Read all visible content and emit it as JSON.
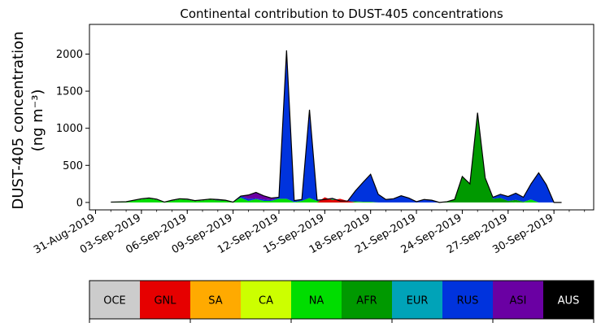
{
  "chart_data": {
    "type": "area",
    "title": "Continental contribution to DUST-405 concentrations",
    "ylabel_line1": "DUST-405 concentration",
    "ylabel_line2": "(ng m⁻³)",
    "xlabel": "",
    "ylim": [
      -100,
      2400
    ],
    "yticks": [
      0,
      500,
      1000,
      1500,
      2000
    ],
    "x_start": "2019-08-31",
    "xlim_days": [
      -0.4,
      32.6
    ],
    "xtick_labels": [
      "31-Aug-2019",
      "03-Sep-2019",
      "06-Sep-2019",
      "09-Sep-2019",
      "12-Sep-2019",
      "15-Sep-2019",
      "18-Sep-2019",
      "21-Sep-2019",
      "24-Sep-2019",
      "27-Sep-2019",
      "30-Sep-2019"
    ],
    "xtick_days": [
      0,
      3,
      6,
      9,
      12,
      15,
      18,
      21,
      24,
      27,
      30
    ],
    "x_days": [
      1,
      2,
      3,
      3.5,
      4,
      4.5,
      5,
      5.5,
      6,
      6.5,
      7,
      7.5,
      8,
      8.5,
      9,
      9.5,
      10,
      10.5,
      11,
      11.5,
      12,
      12.5,
      13,
      13.5,
      14,
      14.5,
      15,
      15.5,
      16,
      16.5,
      17,
      17.5,
      18,
      18.5,
      19,
      19.5,
      20,
      20.5,
      21,
      21.5,
      22,
      22.5,
      23,
      23.5,
      24,
      24.5,
      25,
      25.5,
      26,
      26.5,
      27,
      27.5,
      28,
      28.5,
      29,
      29.5,
      30,
      30.5
    ],
    "series": [
      {
        "name": "GNL",
        "color": "#e60000",
        "values": [
          0,
          0,
          0,
          0,
          0,
          0,
          0,
          0,
          0,
          0,
          0,
          0,
          0,
          0,
          0,
          0,
          0,
          0,
          0,
          0,
          0,
          0,
          0,
          0,
          0,
          0,
          0,
          0,
          0,
          0,
          0,
          0,
          0,
          0,
          0,
          0,
          0,
          0,
          0,
          0,
          0,
          0,
          0,
          0,
          0,
          0,
          0,
          0,
          0,
          0,
          0,
          0,
          0,
          0,
          0,
          0,
          0,
          0
        ]
      },
      {
        "name": "SA",
        "color": "#ffaa00",
        "values": [
          0,
          0,
          0,
          0,
          0,
          0,
          0,
          0,
          0,
          0,
          0,
          0,
          0,
          0,
          0,
          0,
          0,
          0,
          0,
          0,
          0,
          0,
          0,
          0,
          0,
          0,
          0,
          0,
          0,
          0,
          0,
          0,
          0,
          0,
          0,
          0,
          0,
          0,
          0,
          0,
          0,
          0,
          0,
          0,
          0,
          0,
          0,
          0,
          0,
          0,
          0,
          0,
          0,
          0,
          0,
          0,
          0,
          0
        ]
      },
      {
        "name": "CA",
        "color": "#ccff00",
        "values": [
          0,
          0,
          0,
          0,
          0,
          0,
          0,
          0,
          0,
          0,
          0,
          0,
          0,
          0,
          0,
          0,
          0,
          0,
          0,
          0,
          0,
          0,
          0,
          0,
          0,
          0,
          0,
          0,
          0,
          0,
          0,
          0,
          0,
          0,
          0,
          0,
          0,
          0,
          0,
          0,
          0,
          0,
          0,
          0,
          0,
          0,
          0,
          0,
          0,
          0,
          0,
          0,
          0,
          0,
          0,
          0,
          0,
          0
        ]
      },
      {
        "name": "NA",
        "color": "#00dd00",
        "values": [
          5,
          10,
          40,
          50,
          35,
          5,
          20,
          40,
          35,
          15,
          25,
          40,
          20,
          20,
          5,
          60,
          20,
          40,
          20,
          20,
          50,
          50,
          5,
          20,
          60,
          20,
          30,
          40,
          10,
          5,
          10,
          5,
          5,
          0,
          0,
          0,
          0,
          0,
          0,
          0,
          0,
          0,
          0,
          0,
          0,
          0,
          0,
          0,
          0,
          0,
          0,
          5,
          0,
          40,
          0,
          0,
          0,
          0
        ]
      },
      {
        "name": "AFR",
        "color": "#009900",
        "values": [
          0,
          0,
          5,
          5,
          5,
          0,
          5,
          5,
          5,
          5,
          5,
          5,
          10,
          5,
          0,
          5,
          0,
          5,
          0,
          0,
          0,
          0,
          0,
          0,
          0,
          0,
          0,
          5,
          5,
          5,
          5,
          5,
          5,
          0,
          0,
          0,
          0,
          0,
          0,
          0,
          0,
          0,
          10,
          40,
          350,
          250,
          1210,
          330,
          50,
          60,
          20,
          30,
          10,
          0,
          0,
          0,
          0,
          0
        ]
      },
      {
        "name": "EUR",
        "color": "#00a3b8",
        "values": [
          0,
          0,
          0,
          0,
          0,
          0,
          0,
          0,
          0,
          0,
          0,
          0,
          0,
          0,
          0,
          0,
          0,
          0,
          0,
          0,
          0,
          0,
          0,
          0,
          0,
          0,
          0,
          0,
          0,
          0,
          0,
          0,
          0,
          0,
          0,
          0,
          0,
          0,
          0,
          0,
          0,
          0,
          0,
          0,
          0,
          0,
          0,
          0,
          0,
          0,
          0,
          0,
          0,
          0,
          0,
          0,
          0,
          0
        ]
      },
      {
        "name": "RUS",
        "color": "#0033dd",
        "values": [
          0,
          0,
          5,
          5,
          5,
          0,
          5,
          5,
          5,
          5,
          5,
          0,
          10,
          5,
          0,
          20,
          30,
          10,
          20,
          10,
          20,
          2000,
          20,
          20,
          1190,
          10,
          10,
          10,
          5,
          10,
          140,
          260,
          370,
          110,
          40,
          50,
          90,
          60,
          10,
          40,
          30,
          0,
          0,
          0,
          0,
          0,
          0,
          0,
          20,
          50,
          60,
          90,
          60,
          210,
          400,
          240,
          0,
          0
        ]
      },
      {
        "name": "ASI",
        "color": "#6a00a3",
        "values": [
          0,
          0,
          0,
          0,
          0,
          0,
          0,
          0,
          0,
          0,
          0,
          0,
          0,
          0,
          0,
          0,
          50,
          80,
          50,
          30,
          0,
          0,
          0,
          0,
          0,
          0,
          0,
          0,
          0,
          0,
          0,
          0,
          0,
          0,
          0,
          0,
          0,
          0,
          0,
          0,
          0,
          0,
          0,
          0,
          0,
          0,
          0,
          0,
          0,
          0,
          0,
          0,
          0,
          0,
          0,
          0,
          0,
          0
        ]
      },
      {
        "name": "AUS",
        "color": "#000000",
        "values": [
          0,
          0,
          0,
          0,
          0,
          0,
          0,
          0,
          0,
          0,
          0,
          0,
          0,
          0,
          0,
          0,
          0,
          0,
          0,
          0,
          0,
          0,
          0,
          0,
          0,
          0,
          0,
          0,
          0,
          0,
          0,
          0,
          0,
          0,
          0,
          0,
          0,
          0,
          0,
          0,
          0,
          0,
          0,
          0,
          0,
          0,
          0,
          0,
          0,
          0,
          0,
          0,
          0,
          0,
          0,
          0,
          0,
          0
        ]
      }
    ],
    "gnl_overlay": {
      "name": "GNL",
      "color": "#e60000",
      "x_days": [
        14.5,
        15,
        15.5,
        16,
        16.5,
        17
      ],
      "values": [
        0,
        70,
        30,
        50,
        20,
        0
      ]
    },
    "legend": [
      {
        "label": "OCE",
        "color": "#cccccc",
        "text_color": "#000000"
      },
      {
        "label": "GNL",
        "color": "#e60000",
        "text_color": "#000000"
      },
      {
        "label": "SA",
        "color": "#ffaa00",
        "text_color": "#000000"
      },
      {
        "label": "CA",
        "color": "#ccff00",
        "text_color": "#000000"
      },
      {
        "label": "NA",
        "color": "#00dd00",
        "text_color": "#000000"
      },
      {
        "label": "AFR",
        "color": "#009900",
        "text_color": "#000000"
      },
      {
        "label": "EUR",
        "color": "#00a3b8",
        "text_color": "#000000"
      },
      {
        "label": "RUS",
        "color": "#0033dd",
        "text_color": "#000000"
      },
      {
        "label": "ASI",
        "color": "#6a00a3",
        "text_color": "#000000"
      },
      {
        "label": "AUS",
        "color": "#000000",
        "text_color": "#ffffff"
      }
    ]
  }
}
